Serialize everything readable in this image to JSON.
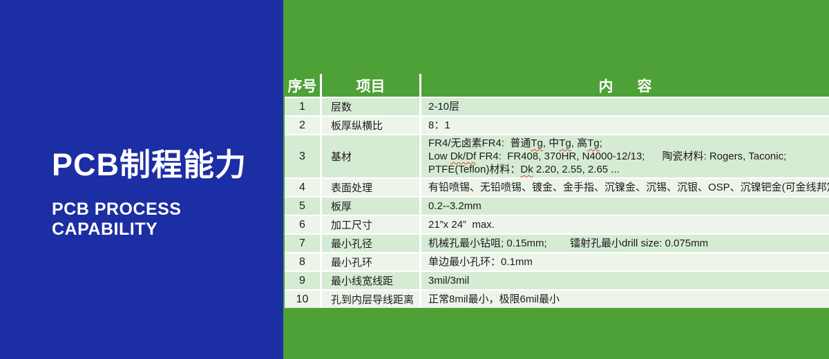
{
  "colors": {
    "panel_blue": "#1C2EA4",
    "panel_green": "#4DA136",
    "row_light_green": "#D6EBD3",
    "row_pale_green": "#EDF5EA",
    "grid_white": "#FFFFFF",
    "spellcheck_red": "#E4412E",
    "text_dark": "#1B1B1B",
    "text_white": "#FFFFFF"
  },
  "left_panel": {
    "title": "PCB制程能力",
    "subtitle_line1": "PCB PROCESS",
    "subtitle_line2": "CAPABILITY"
  },
  "table": {
    "header": [
      "序号",
      "项目",
      "内      容"
    ],
    "rows": [
      {
        "no": "1",
        "item": "层数",
        "lines": [
          [
            "2-10层"
          ]
        ]
      },
      {
        "no": "2",
        "item": "板厚纵横比",
        "lines": [
          [
            "8：1"
          ]
        ]
      },
      {
        "no": "3",
        "item": "基材",
        "lines": [
          [
            "FR4/无卤素FR4:  普通",
            {
              "t": "Tg",
              "sq": true
            },
            ", 中",
            {
              "t": "Tg",
              "sq": true
            },
            ", 高",
            {
              "t": "Tg",
              "sq": true
            },
            ";"
          ],
          [
            "Low ",
            {
              "t": "Dk/Df",
              "sq": true
            },
            " FR4:  FR408, 370HR, N4000-12/13;      陶瓷材料: Rogers, Taconic;"
          ],
          [
            "PTFE(Teflon)材料：",
            {
              "t": "Dk",
              "sq": true
            },
            " 2.20, 2.55, 2.65 ..."
          ]
        ]
      },
      {
        "no": "4",
        "item": "表面处理",
        "lines": [
          [
            "有铅喷锡、无铅喷锡、镀金、金手指、沉镍金、沉锡、沉银、OSP、沉镍钯金(可金线邦定)"
          ]
        ]
      },
      {
        "no": "5",
        "item": "板厚",
        "lines": [
          [
            "0.2--3.2mm"
          ]
        ]
      },
      {
        "no": "6",
        "item": "加工尺寸",
        "lines": [
          [
            "21”x 24”  max."
          ]
        ]
      },
      {
        "no": "7",
        "item": "最小孔径",
        "lines": [
          [
            "机械孔最小钻咀; 0.15mm;        镭射孔最小drill size: 0.075mm"
          ]
        ]
      },
      {
        "no": "8",
        "item": "最小孔环",
        "lines": [
          [
            "单边最小孔环：0.1mm"
          ]
        ]
      },
      {
        "no": "9",
        "item": "最小线宽线距",
        "lines": [
          [
            "3mil/3mil"
          ]
        ]
      },
      {
        "no": "10",
        "item": "孔到内层导线距离",
        "lines": [
          [
            "正常8mil最小，极限6mil最小"
          ]
        ]
      }
    ]
  }
}
